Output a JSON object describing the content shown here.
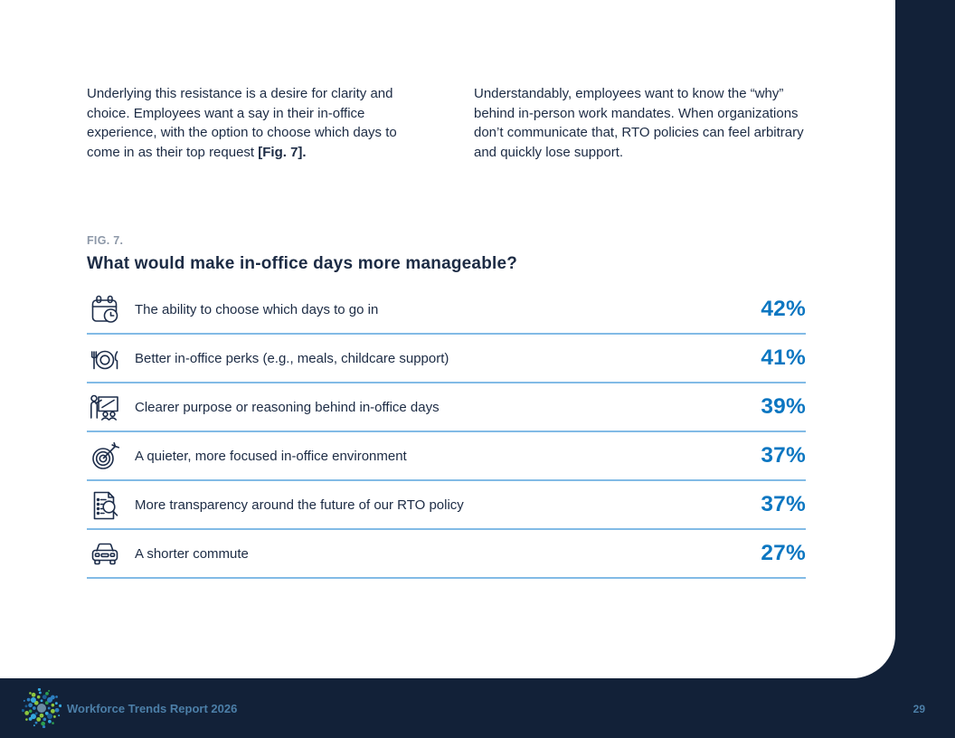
{
  "intro": {
    "left_text": "Underlying this resistance is a desire for clarity and choice. Employees want a say in their in-office experience, with the option to choose which days to come in as their top request ",
    "left_bold": "[Fig. 7].",
    "right_text": "Understandably, employees want to know the “why” behind in-person work mandates. When organizations don’t communicate that, RTO policies can feel arbitrary and quickly lose support."
  },
  "figure": {
    "label": "FIG. 7.",
    "title": "What would make in-office days more manageable?"
  },
  "chart_data": {
    "type": "table",
    "title": "What would make in-office days more manageable?",
    "categories": [
      "The ability to choose which days to go in",
      "Better in-office perks (e.g., meals, childcare support)",
      "Clearer purpose or reasoning behind in-office days",
      "A quieter, more focused in-office environment",
      "More transparency around the future of our RTO policy",
      "A shorter commute"
    ],
    "values": [
      42,
      41,
      39,
      37,
      37,
      27
    ],
    "unit": "%"
  },
  "rows": [
    {
      "icon": "calendar-clock-icon",
      "symbol": "sym-calendar",
      "label": "The ability to choose which days to go in",
      "value": "42%"
    },
    {
      "icon": "meal-plate-icon",
      "symbol": "sym-meal",
      "label": "Better in-office perks (e.g., meals, childcare support)",
      "value": "41%"
    },
    {
      "icon": "presentation-icon",
      "symbol": "sym-presentation",
      "label": "Clearer purpose or reasoning behind in-office days",
      "value": "39%"
    },
    {
      "icon": "target-arrow-icon",
      "symbol": "sym-target",
      "label": "A quieter, more focused in-office environment",
      "value": "37%"
    },
    {
      "icon": "document-search-icon",
      "symbol": "sym-docsearch",
      "label": "More transparency around the future of our RTO policy",
      "value": "37%"
    },
    {
      "icon": "car-icon",
      "symbol": "sym-car",
      "label": "A shorter commute",
      "value": "27%"
    }
  ],
  "footer": {
    "report_title": "Workforce Trends Report 2026",
    "page_number": "29"
  },
  "colors": {
    "navy_background": "#122138",
    "body_text": "#1c2b44",
    "accent_blue": "#0b76c1",
    "divider_blue": "#82bbe6",
    "fig_label_gray": "#8d98a8",
    "footer_text_blue": "#4c7fa8",
    "logo_green": "#8dc63f",
    "logo_blue": "#2d7fc0",
    "logo_light_blue": "#35a7de"
  }
}
